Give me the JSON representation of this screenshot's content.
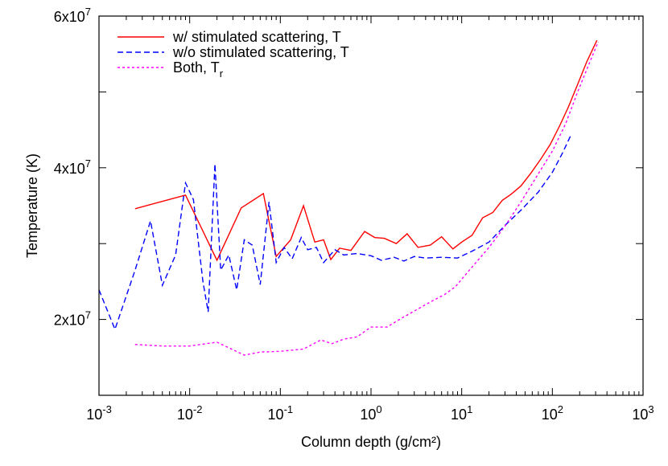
{
  "chart_data": {
    "type": "line",
    "title": "",
    "xlabel": "Column depth (g/cm²)",
    "ylabel": "Temperature (K)",
    "xscale": "log",
    "xlim": [
      0.001,
      1000
    ],
    "ylim": [
      10000000,
      60000000
    ],
    "grid": false,
    "legend_position": "top-left",
    "x_tick_labels": [
      {
        "base": "10",
        "exp": "-3"
      },
      {
        "base": "10",
        "exp": "-2"
      },
      {
        "base": "10",
        "exp": "-1"
      },
      {
        "base": "10",
        "exp": "0"
      },
      {
        "base": "10",
        "exp": "1"
      },
      {
        "base": "10",
        "exp": "2"
      },
      {
        "base": "10",
        "exp": "3"
      }
    ],
    "y_tick_labels": [
      {
        "base": "2x10",
        "exp": "7"
      },
      {
        "base": "4x10",
        "exp": "7"
      },
      {
        "base": "6x10",
        "exp": "7"
      }
    ],
    "series": [
      {
        "name": "w/ stimulated scattering, T",
        "label_base": "w/ stimulated scattering, T",
        "label_sub": "",
        "color": "#ff0000",
        "style": "solid",
        "points": [
          [
            0.0025,
            34600000
          ],
          [
            0.009,
            36400000
          ],
          [
            0.02,
            27800000
          ],
          [
            0.037,
            34700000
          ],
          [
            0.065,
            36600000
          ],
          [
            0.09,
            28300000
          ],
          [
            0.13,
            30500000
          ],
          [
            0.18,
            35000000
          ],
          [
            0.24,
            30200000
          ],
          [
            0.3,
            30500000
          ],
          [
            0.36,
            27900000
          ],
          [
            0.45,
            29400000
          ],
          [
            0.6,
            29100000
          ],
          [
            0.85,
            31600000
          ],
          [
            1.1,
            30800000
          ],
          [
            1.4,
            30700000
          ],
          [
            1.9,
            30000000
          ],
          [
            2.5,
            31300000
          ],
          [
            3.3,
            29500000
          ],
          [
            4.5,
            29800000
          ],
          [
            6,
            30900000
          ],
          [
            8,
            29300000
          ],
          [
            10,
            30200000
          ],
          [
            13,
            31100000
          ],
          [
            17,
            33400000
          ],
          [
            22,
            34100000
          ],
          [
            28,
            35700000
          ],
          [
            35,
            36500000
          ],
          [
            45,
            37600000
          ],
          [
            58,
            39300000
          ],
          [
            75,
            41200000
          ],
          [
            95,
            43100000
          ],
          [
            120,
            45500000
          ],
          [
            150,
            48000000
          ],
          [
            190,
            51000000
          ],
          [
            240,
            54000000
          ],
          [
            310,
            56800000
          ]
        ]
      },
      {
        "name": "w/o stimulated scattering, T",
        "label_base": "w/o stimulated scattering, T",
        "label_sub": "",
        "color": "#0000ff",
        "style": "dashed",
        "points": [
          [
            0.001,
            23900000
          ],
          [
            0.0015,
            18700000
          ],
          [
            0.0025,
            26500000
          ],
          [
            0.0037,
            33000000
          ],
          [
            0.005,
            24500000
          ],
          [
            0.007,
            28500000
          ],
          [
            0.009,
            38000000
          ],
          [
            0.011,
            35800000
          ],
          [
            0.014,
            25000000
          ],
          [
            0.016,
            21000000
          ],
          [
            0.019,
            40500000
          ],
          [
            0.022,
            26500000
          ],
          [
            0.027,
            28500000
          ],
          [
            0.033,
            23900000
          ],
          [
            0.04,
            30500000
          ],
          [
            0.049,
            29800000
          ],
          [
            0.06,
            24600000
          ],
          [
            0.075,
            35500000
          ],
          [
            0.09,
            27500000
          ],
          [
            0.11,
            29500000
          ],
          [
            0.135,
            28000000
          ],
          [
            0.17,
            30800000
          ],
          [
            0.2,
            29200000
          ],
          [
            0.25,
            29500000
          ],
          [
            0.3,
            27500000
          ],
          [
            0.4,
            29200000
          ],
          [
            0.5,
            28500000
          ],
          [
            0.7,
            28700000
          ],
          [
            1,
            28400000
          ],
          [
            1.3,
            27800000
          ],
          [
            1.8,
            28200000
          ],
          [
            2.3,
            27700000
          ],
          [
            3,
            28300000
          ],
          [
            4,
            28100000
          ],
          [
            6,
            28200000
          ],
          [
            9,
            28100000
          ],
          [
            13,
            29000000
          ],
          [
            20,
            30200000
          ],
          [
            30,
            32400000
          ],
          [
            45,
            34400000
          ],
          [
            70,
            36800000
          ],
          [
            100,
            39400000
          ],
          [
            130,
            42000000
          ],
          [
            160,
            44300000
          ]
        ]
      },
      {
        "name": "Both, Tr",
        "label_base": "Both, T",
        "label_sub": "r",
        "color": "#ff00ff",
        "style": "dotted",
        "points": [
          [
            0.0025,
            16700000
          ],
          [
            0.005,
            16500000
          ],
          [
            0.01,
            16500000
          ],
          [
            0.02,
            17000000
          ],
          [
            0.04,
            15300000
          ],
          [
            0.06,
            15700000
          ],
          [
            0.1,
            15800000
          ],
          [
            0.18,
            16100000
          ],
          [
            0.28,
            17300000
          ],
          [
            0.37,
            16800000
          ],
          [
            0.5,
            17400000
          ],
          [
            0.7,
            17700000
          ],
          [
            1,
            19000000
          ],
          [
            1.5,
            19000000
          ],
          [
            2.2,
            20200000
          ],
          [
            3.2,
            21300000
          ],
          [
            4.5,
            22300000
          ],
          [
            6.5,
            23300000
          ],
          [
            8.5,
            24300000
          ],
          [
            13,
            26900000
          ],
          [
            20,
            29500000
          ],
          [
            30,
            32300000
          ],
          [
            45,
            35500000
          ],
          [
            70,
            39200000
          ],
          [
            100,
            42200000
          ],
          [
            140,
            45800000
          ],
          [
            190,
            50000000
          ],
          [
            250,
            53500000
          ],
          [
            320,
            56600000
          ]
        ]
      }
    ]
  }
}
